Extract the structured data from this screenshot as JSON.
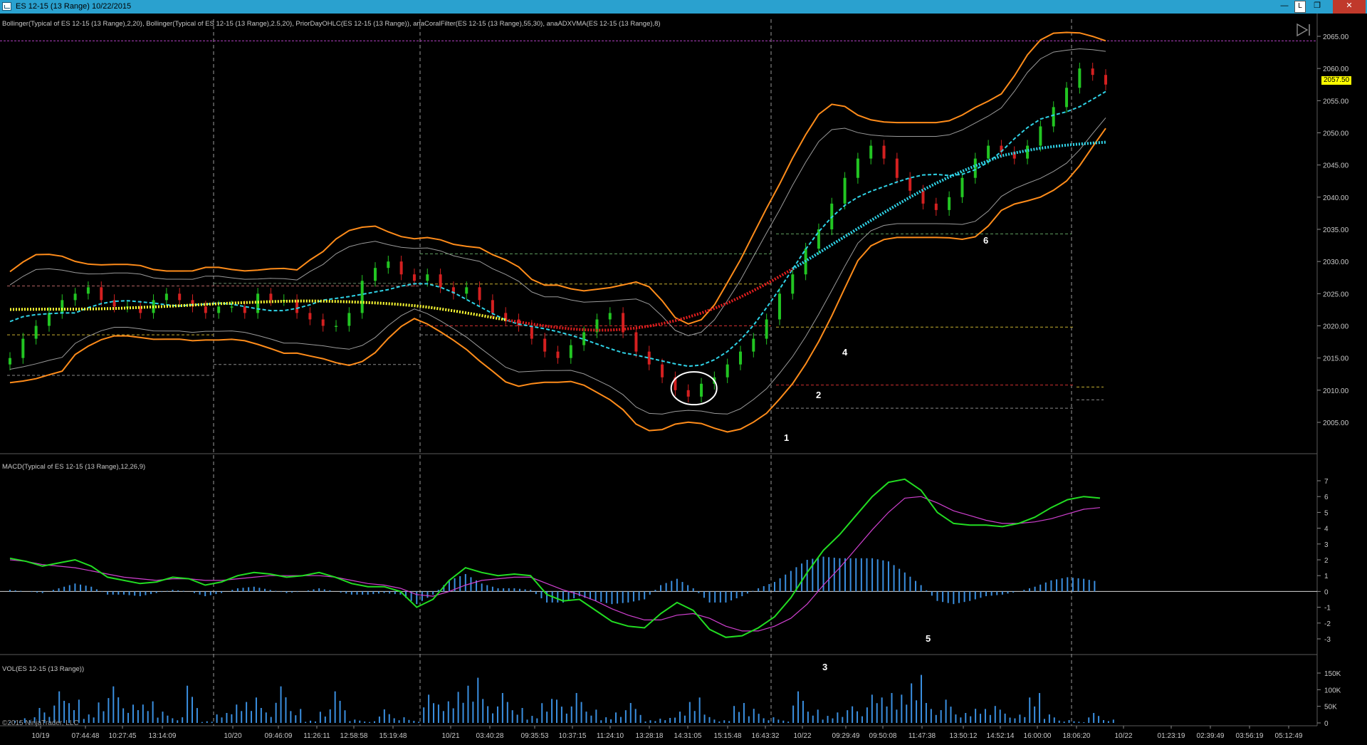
{
  "window": {
    "title": "ES 12-15 (13 Range)  10/22/2015",
    "buttons": {
      "minimize": "—",
      "lock": "L",
      "maximize": "❐",
      "close": "✕"
    }
  },
  "panels": {
    "price": {
      "label": "Bollinger(Typical of ES 12-15 (13 Range),2,20), Bollinger(Typical of ES 12-15 (13 Range),2.5,20), PriorDayOHLC(ES 12-15 (13 Range)), anaCoralFilter(ES 12-15 (13 Range),55,30), anaADXVMA(ES 12-15 (13 Range),8)",
      "axis_ticks": [
        "2065.00",
        "2060.00",
        "2055.00",
        "2050.00",
        "2045.00",
        "2040.00",
        "2035.00",
        "2030.00",
        "2025.00",
        "2020.00",
        "2015.00",
        "2010.00",
        "2005.00"
      ],
      "last_price": "2057.50",
      "annotations": [
        "1",
        "2",
        "4",
        "6"
      ]
    },
    "macd": {
      "label": "MACD(Typical of ES 12-15 (13 Range),12,26,9)",
      "axis_ticks": [
        "7",
        "6",
        "5",
        "4",
        "3",
        "2",
        "1",
        "0",
        "-1",
        "-2",
        "-3"
      ],
      "annotations": [
        "5"
      ]
    },
    "volume": {
      "label": "VOL(ES 12-15 (13 Range))",
      "axis_ticks": [
        "150K",
        "100K",
        "50K",
        "0"
      ],
      "annotations": [
        "3"
      ]
    }
  },
  "time_axis": [
    "10/19",
    "07:44:48",
    "10:27:45",
    "13:14:09",
    "10/20",
    "09:46:09",
    "11:26:11",
    "12:58:58",
    "15:19:48",
    "10/21",
    "03:40:28",
    "09:35:53",
    "10:37:15",
    "11:24:10",
    "13:28:18",
    "14:31:05",
    "15:15:48",
    "16:43:32",
    "10/22",
    "09:29:49",
    "09:50:08",
    "11:47:38",
    "13:50:12",
    "14:52:14",
    "16:00:00",
    "18:06:20",
    "10/22",
    "01:23:19",
    "02:39:49",
    "03:56:19",
    "05:12:49"
  ],
  "copyright": "©2015 NinjaTrader, LLC",
  "colors": {
    "background": "#000000",
    "titlebar": "#2aa1cf",
    "up_bar": "#22c522",
    "down_bar": "#d42020",
    "bollinger_outer": "#ff8c1a",
    "bollinger_inner": "#9a9a9a",
    "coral_up": "#2fd2e6",
    "coral_down": "#ffff33",
    "adxvma_down": "#e21e1e",
    "macd_line": "#22dd22",
    "signal_line": "#d040d0",
    "histogram": "#3a8fe0",
    "volume": "#3a8fe0",
    "prior_high": "#b040c0",
    "last_price_tag": "#ffff00"
  },
  "chart_data": [
    {
      "type": "candlestick",
      "title": "ES 12-15 (13 Range)",
      "ylim": [
        2000,
        2067
      ],
      "series": [
        {
          "name": "Close",
          "values": [
            2015,
            2018,
            2020,
            2022,
            2024,
            2025,
            2026,
            2024,
            2023,
            2023,
            2022,
            2024,
            2025,
            2024,
            2023,
            2022,
            2023,
            2023,
            2022,
            2025,
            2024,
            2024,
            2022,
            2021,
            2020,
            2020,
            2022,
            2027,
            2029,
            2030,
            2028,
            2027,
            2028,
            2026,
            2025,
            2026,
            2024,
            2022,
            2021,
            2020,
            2018,
            2016,
            2015,
            2017,
            2019,
            2021,
            2022,
            2019,
            2016,
            2014,
            2012,
            2010,
            2009,
            2011,
            2012,
            2014,
            2016,
            2018,
            2021,
            2025,
            2028,
            2032,
            2035,
            2039,
            2043,
            2046,
            2048,
            2046,
            2043,
            2041,
            2039,
            2038,
            2040,
            2043,
            2046,
            2048,
            2047,
            2046,
            2048,
            2051,
            2054,
            2057,
            2060,
            2059,
            2057.5
          ]
        }
      ]
    },
    {
      "type": "line",
      "title": "MACD(Typical of ES 12-15 (13 Range),12,26,9)",
      "ylim": [
        -3.5,
        7.5
      ],
      "series": [
        {
          "name": "MACD",
          "values": [
            2.1,
            1.9,
            1.6,
            1.8,
            2.0,
            1.6,
            0.9,
            0.7,
            0.5,
            0.6,
            0.9,
            0.8,
            0.4,
            0.6,
            1.0,
            1.2,
            1.1,
            0.9,
            1.0,
            1.2,
            0.9,
            0.5,
            0.3,
            0.3,
            0.0,
            -1.0,
            -0.5,
            0.7,
            1.5,
            1.2,
            1.0,
            1.1,
            1.0,
            -0.2,
            -0.6,
            -0.5,
            -1.2,
            -1.9,
            -2.2,
            -2.3,
            -1.4,
            -0.7,
            -1.2,
            -2.4,
            -2.9,
            -2.8,
            -2.3,
            -1.6,
            -0.4,
            1.2,
            2.6,
            3.6,
            4.8,
            6.0,
            6.9,
            7.1,
            6.4,
            5.0,
            4.3,
            4.2,
            4.2,
            4.1,
            4.3,
            4.7,
            5.3,
            5.8,
            6.0,
            5.9
          ]
        },
        {
          "name": "Signal",
          "values": [
            2.0,
            1.9,
            1.7,
            1.6,
            1.5,
            1.3,
            1.1,
            0.9,
            0.8,
            0.7,
            0.8,
            0.8,
            0.7,
            0.7,
            0.8,
            0.9,
            1.0,
            1.0,
            1.0,
            1.0,
            0.9,
            0.7,
            0.5,
            0.4,
            0.2,
            -0.2,
            -0.3,
            0.0,
            0.4,
            0.7,
            0.8,
            0.9,
            0.9,
            0.5,
            0.1,
            -0.2,
            -0.6,
            -1.1,
            -1.5,
            -1.8,
            -1.8,
            -1.5,
            -1.4,
            -1.7,
            -2.2,
            -2.5,
            -2.5,
            -2.2,
            -1.7,
            -0.8,
            0.4,
            1.5,
            2.7,
            3.9,
            5.0,
            5.9,
            6.0,
            5.6,
            5.1,
            4.8,
            4.5,
            4.3,
            4.3,
            4.4,
            4.6,
            4.9,
            5.2,
            5.3
          ]
        },
        {
          "name": "Diff",
          "values": [
            0.1,
            0.0,
            -0.1,
            0.2,
            0.5,
            0.3,
            -0.2,
            -0.2,
            -0.3,
            -0.1,
            0.1,
            0.0,
            -0.3,
            -0.1,
            0.2,
            0.3,
            0.1,
            -0.1,
            0.0,
            0.2,
            0.0,
            -0.2,
            -0.2,
            -0.1,
            -0.2,
            -0.8,
            -0.2,
            0.7,
            1.1,
            0.5,
            0.2,
            0.2,
            0.1,
            -0.7,
            -0.7,
            -0.3,
            -0.6,
            -0.8,
            -0.7,
            -0.5,
            0.4,
            0.8,
            0.2,
            -0.7,
            -0.7,
            -0.3,
            0.2,
            0.6,
            1.3,
            2.0,
            2.2,
            2.1,
            2.1,
            2.1,
            1.9,
            1.2,
            0.4,
            -0.6,
            -0.8,
            -0.6,
            -0.3,
            -0.2,
            0.0,
            0.3,
            0.7,
            0.9,
            0.8,
            0.6
          ]
        }
      ]
    },
    {
      "type": "bar",
      "title": "VOL(ES 12-15 (13 Range))",
      "ylim": [
        0,
        180000
      ],
      "series": [
        {
          "name": "Volume",
          "values": [
            8000,
            20000,
            45000,
            95000,
            70000,
            30000,
            88000,
            110000,
            55000,
            65000,
            40000,
            20000,
            112000,
            5000,
            30000,
            65000,
            90000,
            45000,
            110000,
            42000,
            8000,
            48000,
            95000,
            10000,
            5000,
            48000,
            20000,
            9000,
            85000,
            65000,
            110000,
            160000,
            72000,
            90000,
            45000,
            25000,
            85000,
            70000,
            90000,
            40000,
            20000,
            45000,
            60000,
            8000,
            15000,
            40000,
            90000,
            25000,
            8000,
            60000,
            50000,
            20000,
            10000,
            95000,
            40000,
            25000,
            45000,
            50000,
            85000,
            90000,
            100000,
            170000,
            60000,
            70000,
            30000,
            50000,
            60000,
            40000,
            25000,
            90000,
            30000,
            10000,
            5000,
            30000,
            10000
          ]
        }
      ]
    }
  ]
}
